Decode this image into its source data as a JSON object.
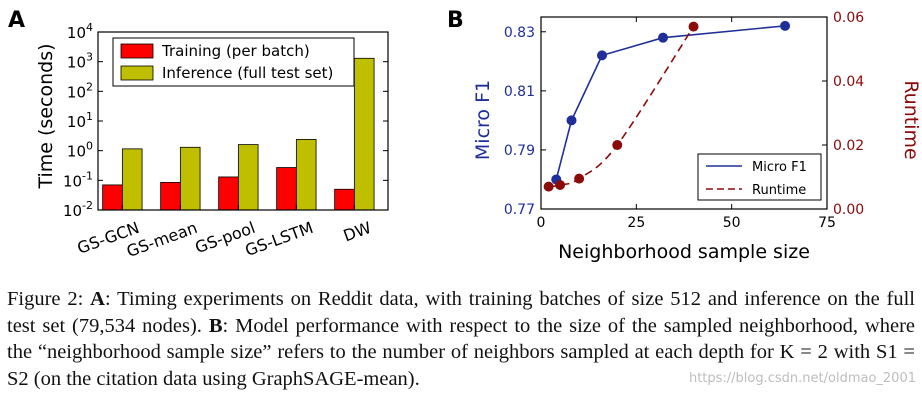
{
  "chart_data": [
    {
      "panel_label": "A",
      "type": "bar",
      "yscale": "log",
      "ylabel": "Time (seconds)",
      "ylim": [
        0.01,
        10000
      ],
      "yticks": [
        {
          "value": 0.01,
          "base": "10",
          "exp": "-2"
        },
        {
          "value": 0.1,
          "base": "10",
          "exp": "-1"
        },
        {
          "value": 1,
          "base": "10",
          "exp": "0"
        },
        {
          "value": 10,
          "base": "10",
          "exp": "1"
        },
        {
          "value": 100,
          "base": "10",
          "exp": "2"
        },
        {
          "value": 1000,
          "base": "10",
          "exp": "3"
        },
        {
          "value": 10000,
          "base": "10",
          "exp": "4"
        }
      ],
      "categories": [
        "GS-GCN",
        "GS-mean",
        "GS-pool",
        "GS-LSTM",
        "DW"
      ],
      "series": [
        {
          "name": "Training (per batch)",
          "color": "#ff0000",
          "values": [
            0.07,
            0.085,
            0.13,
            0.27,
            0.05
          ]
        },
        {
          "name": "Inference (full test set)",
          "color": "#bfbf00",
          "values": [
            1.15,
            1.3,
            1.6,
            2.4,
            1300
          ]
        }
      ],
      "legend_position": "top-left"
    },
    {
      "panel_label": "B",
      "type": "line",
      "xlabel": "Neighborhood sample size",
      "xlim": [
        0,
        75
      ],
      "xticks": [
        "0",
        "25",
        "50",
        "75"
      ],
      "ylabel_left": "Micro F1",
      "ylim_left": [
        0.77,
        0.835
      ],
      "yticks_left": [
        "0.77",
        "0.79",
        "0.81",
        "0.83"
      ],
      "ylabel_right": "Runtime",
      "ylim_right": [
        0,
        0.06
      ],
      "yticks_right": [
        "0.00",
        "0.02",
        "0.04",
        "0.06"
      ],
      "series": [
        {
          "name": "Micro F1",
          "axis": "left",
          "color": "#1f2f99",
          "style": "solid",
          "x": [
            4,
            8,
            16,
            32,
            64
          ],
          "y": [
            0.78,
            0.8,
            0.822,
            0.828,
            0.832
          ]
        },
        {
          "name": "Runtime",
          "axis": "right",
          "color": "#8b0a0a",
          "style": "dashed",
          "x": [
            2,
            5,
            10,
            20,
            40
          ],
          "y": [
            0.007,
            0.0075,
            0.0095,
            0.02,
            0.057
          ]
        }
      ],
      "legend_position": "bottom-right"
    }
  ],
  "caption": {
    "label": "Figure 2:",
    "a_label": "A",
    "a_text": ": Timing experiments on Reddit data, with training batches of size 512 and inference on the full test set (79,534 nodes).",
    "b_label": "B",
    "b_text": ": Model performance with respect to the size of the sampled neighborhood, where the “neighborhood sample size” refers to the number of neighbors sampled at each depth for K = 2 with S1 = S2 (on the citation data using GraphSAGE-mean)."
  },
  "watermark": "https://blog.csdn.net/oldmao_2001"
}
